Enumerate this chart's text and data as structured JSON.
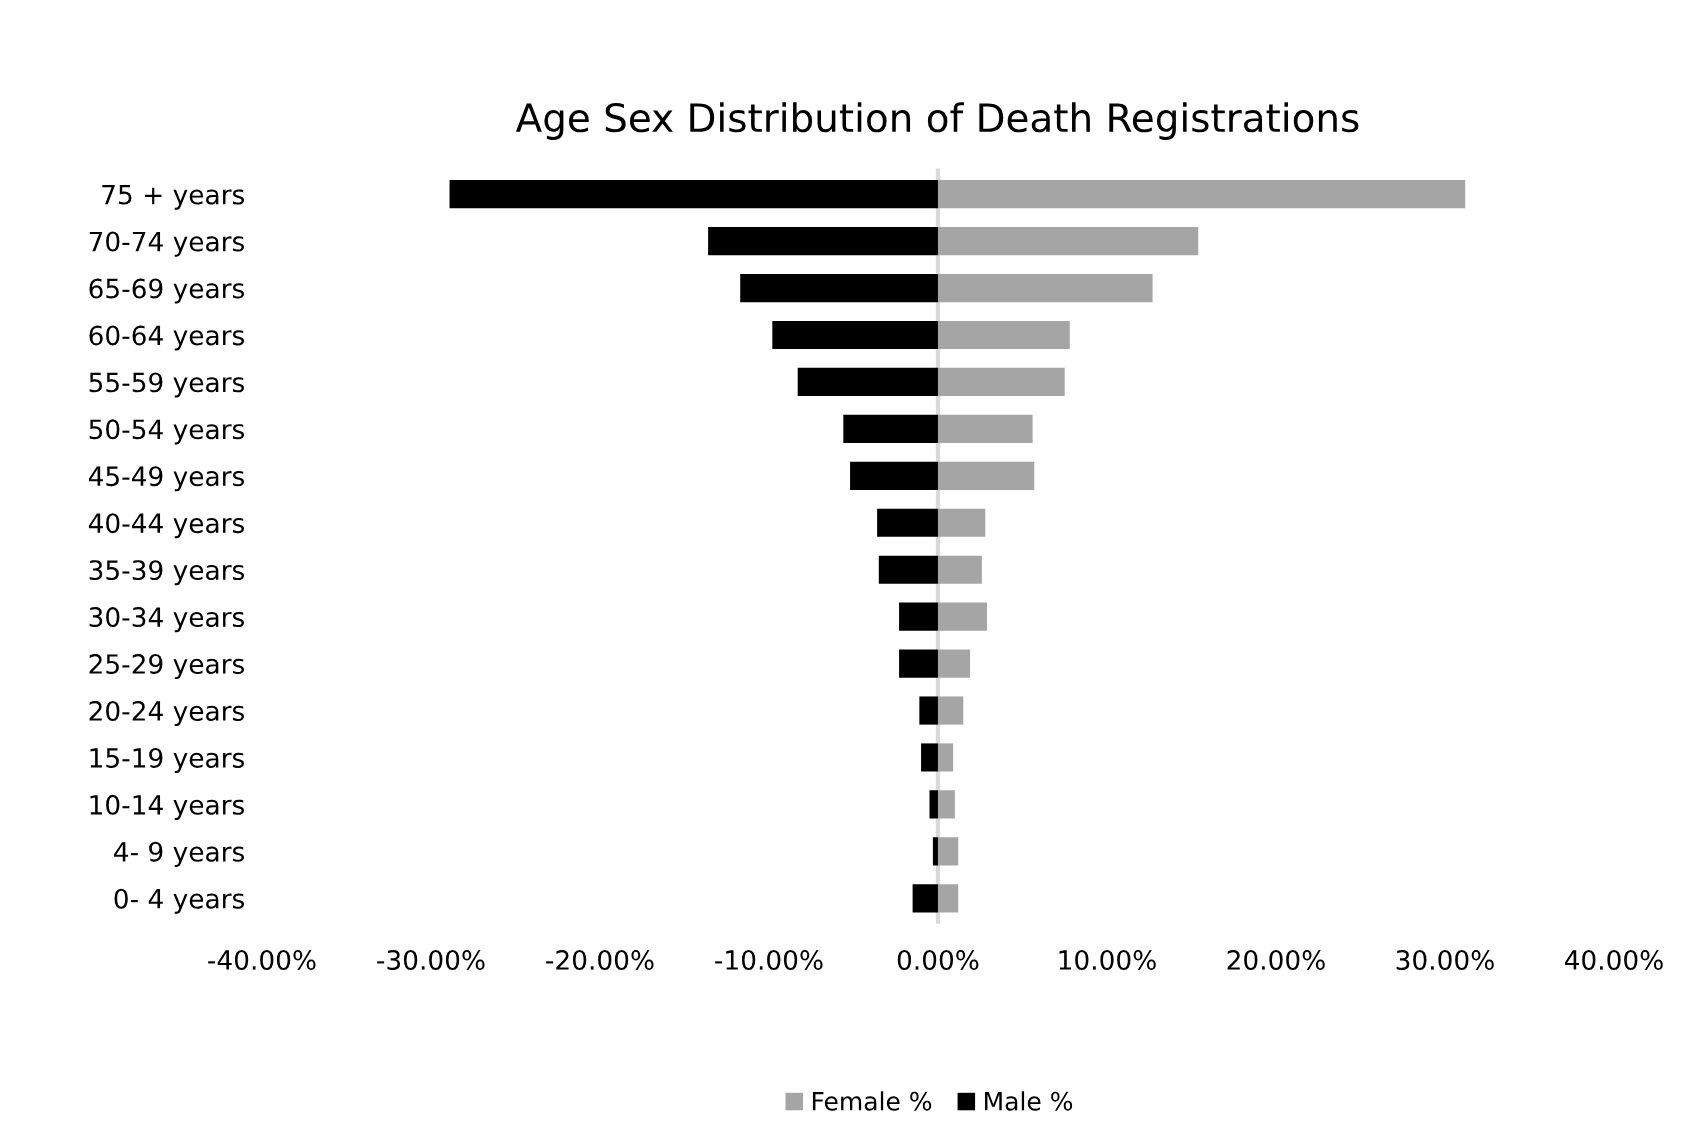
{
  "chart_data": {
    "type": "bar",
    "orientation": "horizontal",
    "title": "Age Sex Distribution of Death Registrations",
    "categories": [
      "75 + years",
      "70-74 years",
      "65-69 years",
      "60-64 years",
      "55-59 years",
      "50-54 years",
      "45-49 years",
      "40-44 years",
      "35-39 years",
      "30-34 years",
      "25-29 years",
      "20-24 years",
      "15-19 years",
      "10-14 years",
      "4- 9 years",
      "0- 4 years"
    ],
    "series": [
      {
        "name": "Female %",
        "color": "#a5a5a5",
        "values": [
          31.2,
          15.4,
          12.7,
          7.8,
          7.5,
          5.6,
          5.7,
          2.8,
          2.6,
          2.9,
          1.9,
          1.5,
          0.9,
          1.0,
          1.2,
          1.2
        ]
      },
      {
        "name": "Male %",
        "color": "#000000",
        "values": [
          -28.9,
          -13.6,
          -11.7,
          -9.8,
          -8.3,
          -5.6,
          -5.2,
          -3.6,
          -3.5,
          -2.3,
          -2.3,
          -1.1,
          -1.0,
          -0.5,
          -0.3,
          -1.5
        ]
      }
    ],
    "xlim": [
      -40,
      40
    ],
    "xticks": [
      {
        "value": -40,
        "label": "-40.00%"
      },
      {
        "value": -30,
        "label": "-30.00%"
      },
      {
        "value": -20,
        "label": "-20.00%"
      },
      {
        "value": -10,
        "label": "-10.00%"
      },
      {
        "value": 0,
        "label": "0.00%"
      },
      {
        "value": 10,
        "label": "10.00%"
      },
      {
        "value": 20,
        "label": "20.00%"
      },
      {
        "value": 30,
        "label": "30.00%"
      },
      {
        "value": 40,
        "label": "40.00%"
      }
    ],
    "stacked": true,
    "legend": "bottom"
  }
}
